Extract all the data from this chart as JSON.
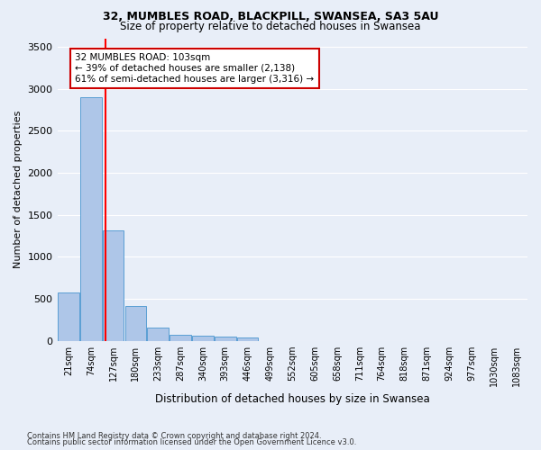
{
  "title1": "32, MUMBLES ROAD, BLACKPILL, SWANSEA, SA3 5AU",
  "title2": "Size of property relative to detached houses in Swansea",
  "xlabel": "Distribution of detached houses by size in Swansea",
  "ylabel": "Number of detached properties",
  "footer1": "Contains HM Land Registry data © Crown copyright and database right 2024.",
  "footer2": "Contains public sector information licensed under the Open Government Licence v3.0.",
  "bin_labels": [
    "21sqm",
    "74sqm",
    "127sqm",
    "180sqm",
    "233sqm",
    "287sqm",
    "340sqm",
    "393sqm",
    "446sqm",
    "499sqm",
    "552sqm",
    "605sqm",
    "658sqm",
    "711sqm",
    "764sqm",
    "818sqm",
    "871sqm",
    "924sqm",
    "977sqm",
    "1030sqm",
    "1083sqm"
  ],
  "bar_values": [
    570,
    2900,
    1310,
    410,
    155,
    75,
    55,
    45,
    35,
    0,
    0,
    0,
    0,
    0,
    0,
    0,
    0,
    0,
    0,
    0,
    0
  ],
  "bar_color": "#aec6e8",
  "bar_edge_color": "#5a9fd4",
  "property_label": "32 MUMBLES ROAD: 103sqm",
  "annotation_line1": "← 39% of detached houses are smaller (2,138)",
  "annotation_line2": "61% of semi-detached houses are larger (3,316) →",
  "ylim": [
    0,
    3600
  ],
  "yticks": [
    0,
    500,
    1000,
    1500,
    2000,
    2500,
    3000,
    3500
  ],
  "background_color": "#e8eef8",
  "grid_color": "#ffffff",
  "annotation_box_color": "#ffffff",
  "annotation_box_edge": "#cc0000",
  "red_line_x": 1.65
}
